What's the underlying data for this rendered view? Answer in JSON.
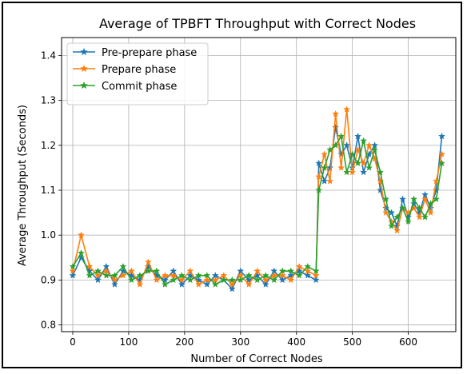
{
  "chart_data": {
    "type": "line",
    "title": "Average of TPBFT Throughput with Correct Nodes",
    "xlabel": "Number of Correct Nodes",
    "ylabel": "Average Throughput (Seconds)",
    "xlim": [
      -20,
      685
    ],
    "ylim": [
      0.785,
      1.44
    ],
    "xticks": [
      0,
      100,
      200,
      300,
      400,
      500,
      600
    ],
    "yticks": [
      0.8,
      0.9,
      1.0,
      1.1,
      1.2,
      1.3,
      1.4
    ],
    "grid": true,
    "legend": "top-left",
    "marker": "star",
    "series": [
      {
        "name": "Pre-prepare phase",
        "color": "#1f77b4",
        "x": [
          0,
          15,
          30,
          45,
          60,
          75,
          90,
          105,
          120,
          135,
          150,
          165,
          180,
          195,
          210,
          225,
          240,
          255,
          270,
          285,
          300,
          315,
          330,
          345,
          360,
          375,
          390,
          405,
          420,
          435,
          440,
          450,
          460,
          470,
          480,
          490,
          500,
          510,
          520,
          530,
          540,
          550,
          560,
          570,
          580,
          590,
          600,
          610,
          620,
          630,
          640,
          650,
          660
        ],
        "values": [
          0.91,
          0.95,
          0.92,
          0.9,
          0.93,
          0.89,
          0.92,
          0.91,
          0.9,
          0.93,
          0.91,
          0.9,
          0.92,
          0.89,
          0.91,
          0.9,
          0.89,
          0.91,
          0.9,
          0.88,
          0.92,
          0.9,
          0.91,
          0.89,
          0.92,
          0.9,
          0.91,
          0.92,
          0.91,
          0.9,
          1.16,
          1.12,
          1.15,
          1.24,
          1.18,
          1.2,
          1.15,
          1.22,
          1.14,
          1.18,
          1.2,
          1.1,
          1.06,
          1.05,
          1.02,
          1.08,
          1.04,
          1.07,
          1.05,
          1.09,
          1.06,
          1.1,
          1.22
        ]
      },
      {
        "name": "Prepare phase",
        "color": "#ff7f0e",
        "x": [
          0,
          15,
          30,
          45,
          60,
          75,
          90,
          105,
          120,
          135,
          150,
          165,
          180,
          195,
          210,
          225,
          240,
          255,
          270,
          285,
          300,
          315,
          330,
          345,
          360,
          375,
          390,
          405,
          420,
          435,
          440,
          450,
          460,
          470,
          480,
          490,
          500,
          510,
          520,
          530,
          540,
          550,
          560,
          570,
          580,
          590,
          600,
          610,
          620,
          630,
          640,
          650,
          660
        ],
        "values": [
          0.92,
          1.0,
          0.93,
          0.91,
          0.92,
          0.9,
          0.91,
          0.92,
          0.89,
          0.94,
          0.9,
          0.91,
          0.91,
          0.9,
          0.92,
          0.89,
          0.9,
          0.9,
          0.91,
          0.89,
          0.91,
          0.89,
          0.92,
          0.9,
          0.91,
          0.91,
          0.9,
          0.93,
          0.92,
          0.91,
          1.13,
          1.18,
          1.12,
          1.27,
          1.15,
          1.28,
          1.14,
          1.19,
          1.16,
          1.2,
          1.17,
          1.12,
          1.05,
          1.03,
          1.01,
          1.06,
          1.05,
          1.06,
          1.04,
          1.08,
          1.05,
          1.12,
          1.18
        ]
      },
      {
        "name": "Commit phase",
        "color": "#2ca02c",
        "x": [
          0,
          15,
          30,
          45,
          60,
          75,
          90,
          105,
          120,
          135,
          150,
          165,
          180,
          195,
          210,
          225,
          240,
          255,
          270,
          285,
          300,
          315,
          330,
          345,
          360,
          375,
          390,
          405,
          420,
          435,
          440,
          450,
          460,
          470,
          480,
          490,
          500,
          510,
          520,
          530,
          540,
          550,
          560,
          570,
          580,
          590,
          600,
          610,
          620,
          630,
          640,
          650,
          660
        ],
        "values": [
          0.93,
          0.96,
          0.91,
          0.92,
          0.91,
          0.91,
          0.93,
          0.9,
          0.91,
          0.92,
          0.92,
          0.89,
          0.9,
          0.91,
          0.9,
          0.91,
          0.91,
          0.89,
          0.9,
          0.9,
          0.9,
          0.91,
          0.9,
          0.91,
          0.9,
          0.92,
          0.92,
          0.91,
          0.93,
          0.92,
          1.1,
          1.15,
          1.19,
          1.2,
          1.22,
          1.14,
          1.18,
          1.16,
          1.21,
          1.15,
          1.19,
          1.14,
          1.08,
          1.02,
          1.04,
          1.06,
          1.03,
          1.08,
          1.06,
          1.04,
          1.07,
          1.08,
          1.16
        ]
      }
    ]
  }
}
